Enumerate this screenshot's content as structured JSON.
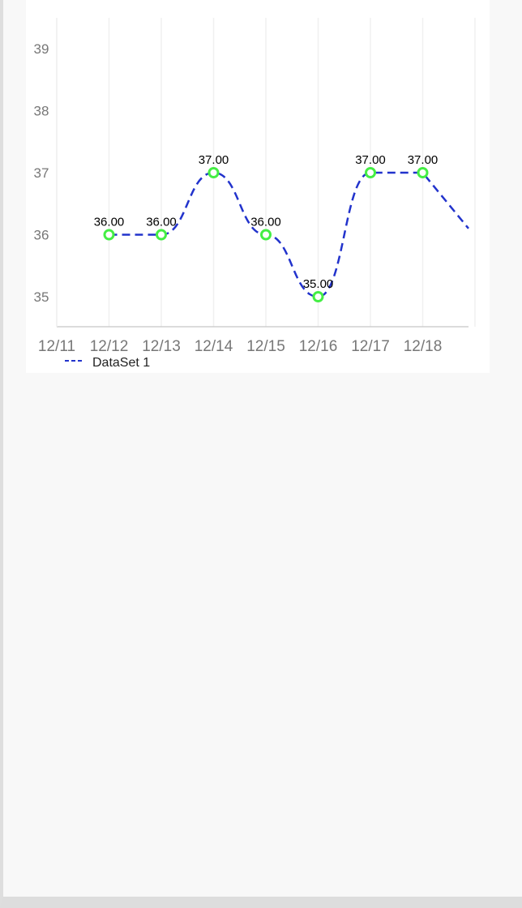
{
  "chart_data": {
    "type": "line",
    "title": "",
    "xlabel": "",
    "ylabel": "",
    "categories": [
      "12/11",
      "12/12",
      "12/13",
      "12/14",
      "12/15",
      "12/16",
      "12/17",
      "12/18"
    ],
    "y_ticks": [
      35,
      36,
      37,
      38,
      39
    ],
    "ylim": [
      34.5,
      39.5
    ],
    "grid": "vertical",
    "legend_position": "bottom-left",
    "series": [
      {
        "name": "DataSet 1",
        "line_style": "dashed",
        "line_color": "#2233cc",
        "marker_color": "#44ee44",
        "x": [
          "12/12",
          "12/13",
          "12/14",
          "12/15",
          "12/16",
          "12/17",
          "12/18"
        ],
        "values": [
          36,
          36,
          37,
          36,
          35,
          37,
          37
        ],
        "data_labels": [
          "36.00",
          "36.00",
          "37.00",
          "36.00",
          "35.00",
          "37.00",
          "37.00"
        ]
      }
    ],
    "trailing_segment_end_value": 36.1
  }
}
